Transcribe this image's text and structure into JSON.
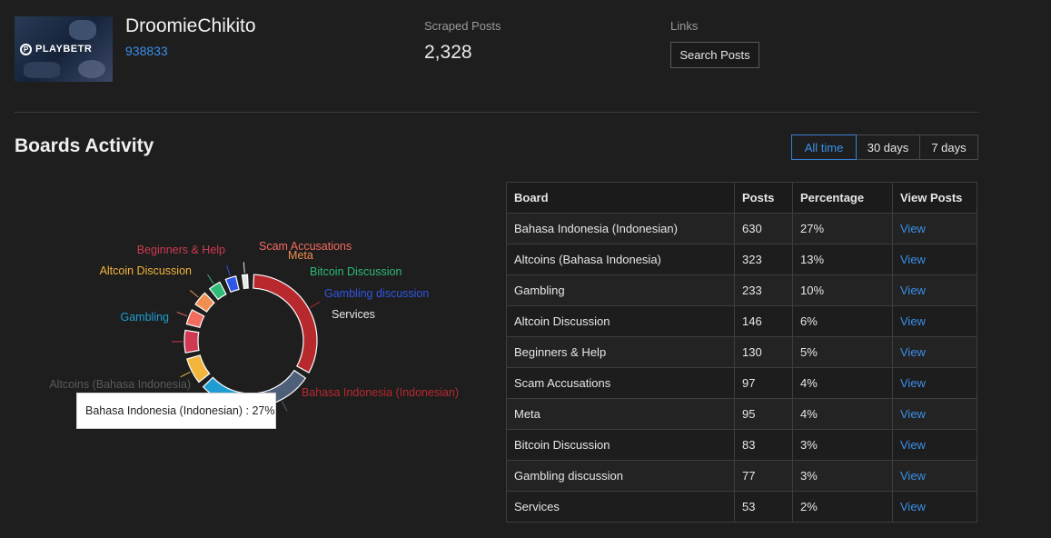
{
  "profile": {
    "avatar_text": "PLAYBETR",
    "username": "DroomieChikito",
    "user_id": "938833"
  },
  "stats": {
    "scraped_label": "Scraped Posts",
    "scraped_value": "2,328",
    "links_label": "Links",
    "search_button": "Search Posts"
  },
  "section": {
    "title": "Boards Activity",
    "ranges": [
      "All time",
      "30 days",
      "7 days"
    ],
    "active_range": "All time"
  },
  "table": {
    "headers": [
      "Board",
      "Posts",
      "Percentage",
      "View Posts"
    ],
    "rows": [
      {
        "board": "Bahasa Indonesia (Indonesian)",
        "posts": "630",
        "pct": "27%",
        "link": "View"
      },
      {
        "board": "Altcoins (Bahasa Indonesia)",
        "posts": "323",
        "pct": "13%",
        "link": "View"
      },
      {
        "board": "Gambling",
        "posts": "233",
        "pct": "10%",
        "link": "View"
      },
      {
        "board": "Altcoin Discussion",
        "posts": "146",
        "pct": "6%",
        "link": "View"
      },
      {
        "board": "Beginners & Help",
        "posts": "130",
        "pct": "5%",
        "link": "View"
      },
      {
        "board": "Scam Accusations",
        "posts": "97",
        "pct": "4%",
        "link": "View"
      },
      {
        "board": "Meta",
        "posts": "95",
        "pct": "4%",
        "link": "View"
      },
      {
        "board": "Bitcoin Discussion",
        "posts": "83",
        "pct": "3%",
        "link": "View"
      },
      {
        "board": "Gambling discussion",
        "posts": "77",
        "pct": "3%",
        "link": "View"
      },
      {
        "board": "Services",
        "posts": "53",
        "pct": "2%",
        "link": "View"
      }
    ]
  },
  "chart_data": {
    "type": "pie",
    "donut": true,
    "start_angle_deg": 90,
    "slices": [
      {
        "label": "Bahasa Indonesia (Indonesian)",
        "value": 630,
        "color": "#b8292d"
      },
      {
        "label": "Altcoins (Bahasa Indonesia)",
        "value": 323,
        "color": "#4e5f7a"
      },
      {
        "label": "Gambling",
        "value": 233,
        "color": "#1f9dd2"
      },
      {
        "label": "Altcoin Discussion",
        "value": 146,
        "color": "#f3b43b"
      },
      {
        "label": "Beginners & Help",
        "value": 130,
        "color": "#cf3a52"
      },
      {
        "label": "Scam Accusations",
        "value": 97,
        "color": "#f26b5f"
      },
      {
        "label": "Meta",
        "value": 95,
        "color": "#f08f4f"
      },
      {
        "label": "Bitcoin Discussion",
        "value": 83,
        "color": "#2dbb76"
      },
      {
        "label": "Gambling discussion",
        "value": 77,
        "color": "#2f56e6"
      },
      {
        "label": "Services",
        "value": 53,
        "color": "#e8e8e8"
      }
    ],
    "tooltip": "Bahasa Indonesia (Indonesian) : 27%"
  }
}
